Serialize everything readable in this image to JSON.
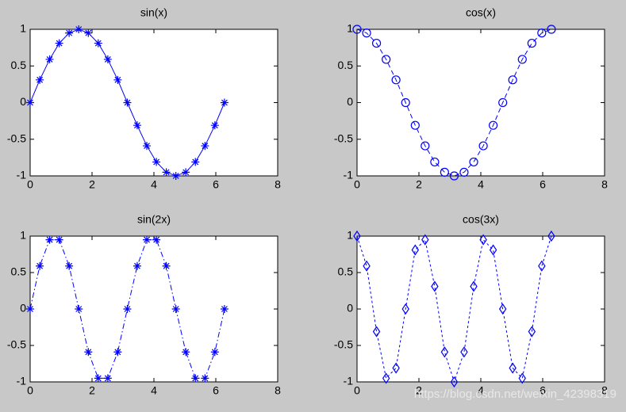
{
  "chart_data": [
    {
      "type": "line",
      "title": "sin(x)",
      "line_style": "solid",
      "marker": "star",
      "x": [
        0,
        0.31,
        0.63,
        0.94,
        1.26,
        1.57,
        1.88,
        2.2,
        2.51,
        2.83,
        3.14,
        3.46,
        3.77,
        4.08,
        4.4,
        4.71,
        5.03,
        5.34,
        5.65,
        5.97,
        6.28
      ],
      "series": [
        {
          "color": "#0000ff",
          "values": [
            0,
            0.31,
            0.59,
            0.81,
            0.95,
            1,
            0.95,
            0.81,
            0.59,
            0.31,
            0,
            -0.31,
            -0.59,
            -0.81,
            -0.95,
            -1,
            -0.95,
            -0.81,
            -0.59,
            -0.31,
            0
          ]
        }
      ],
      "xlim": [
        0,
        8
      ],
      "ylim": [
        -1,
        1
      ],
      "xticks": [
        0,
        2,
        4,
        6,
        8
      ],
      "yticks": [
        -1,
        -0.5,
        0,
        0.5,
        1
      ]
    },
    {
      "type": "line",
      "title": "cos(x)",
      "line_style": "dashed",
      "marker": "circle",
      "x": [
        0,
        0.31,
        0.63,
        0.94,
        1.26,
        1.57,
        1.88,
        2.2,
        2.51,
        2.83,
        3.14,
        3.46,
        3.77,
        4.08,
        4.4,
        4.71,
        5.03,
        5.34,
        5.65,
        5.97,
        6.28
      ],
      "series": [
        {
          "color": "#0000ff",
          "values": [
            1,
            0.95,
            0.81,
            0.59,
            0.31,
            0,
            -0.31,
            -0.59,
            -0.81,
            -0.95,
            -1,
            -0.95,
            -0.81,
            -0.59,
            -0.31,
            0,
            0.31,
            0.59,
            0.81,
            0.95,
            1
          ]
        }
      ],
      "xlim": [
        0,
        8
      ],
      "ylim": [
        -1,
        1
      ],
      "xticks": [
        0,
        2,
        4,
        6,
        8
      ],
      "yticks": [
        -1,
        -0.5,
        0,
        0.5,
        1
      ]
    },
    {
      "type": "line",
      "title": "sin(2x)",
      "line_style": "dashdot",
      "marker": "star",
      "x": [
        0,
        0.31,
        0.63,
        0.94,
        1.26,
        1.57,
        1.88,
        2.2,
        2.51,
        2.83,
        3.14,
        3.46,
        3.77,
        4.08,
        4.4,
        4.71,
        5.03,
        5.34,
        5.65,
        5.97,
        6.28
      ],
      "series": [
        {
          "color": "#0000ff",
          "values": [
            0,
            0.59,
            0.95,
            0.95,
            0.59,
            0,
            -0.59,
            -0.95,
            -0.95,
            -0.59,
            0,
            0.59,
            0.95,
            0.95,
            0.59,
            0,
            -0.59,
            -0.95,
            -0.95,
            -0.59,
            0
          ]
        }
      ],
      "xlim": [
        0,
        8
      ],
      "ylim": [
        -1,
        1
      ],
      "xticks": [
        0,
        2,
        4,
        6,
        8
      ],
      "yticks": [
        -1,
        -0.5,
        0,
        0.5,
        1
      ]
    },
    {
      "type": "line",
      "title": "cos(3x)",
      "line_style": "dotted",
      "marker": "diamond",
      "x": [
        0,
        0.31,
        0.63,
        0.94,
        1.26,
        1.57,
        1.88,
        2.2,
        2.51,
        2.83,
        3.14,
        3.46,
        3.77,
        4.08,
        4.4,
        4.71,
        5.03,
        5.34,
        5.65,
        5.97,
        6.28
      ],
      "series": [
        {
          "color": "#0000ff",
          "values": [
            1,
            0.59,
            -0.31,
            -0.95,
            -0.81,
            0,
            0.81,
            0.95,
            0.31,
            -0.59,
            -1,
            -0.59,
            0.31,
            0.95,
            0.81,
            0,
            -0.81,
            -0.95,
            -0.31,
            0.59,
            1
          ]
        }
      ],
      "xlim": [
        0,
        8
      ],
      "ylim": [
        -1,
        1
      ],
      "xticks": [
        0,
        2,
        4,
        6,
        8
      ],
      "yticks": [
        -1,
        -0.5,
        0,
        0.5,
        1
      ]
    }
  ],
  "watermark": "https://blog.csdn.net/weixin_42398319"
}
